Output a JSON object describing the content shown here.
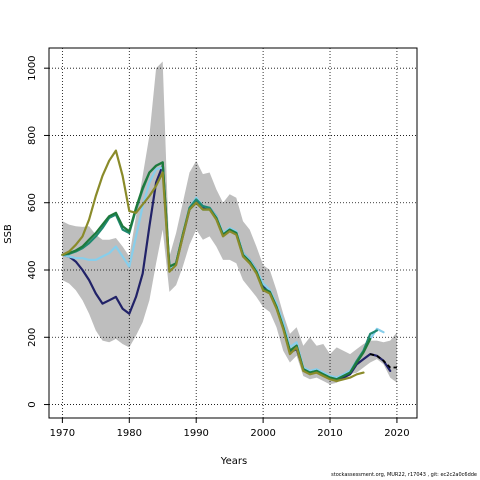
{
  "chart_data": {
    "type": "line",
    "xlabel": "Years",
    "ylabel": "SSB",
    "xlim": [
      1968,
      2023
    ],
    "ylim": [
      -40,
      1060
    ],
    "x_ticks": [
      1970,
      1980,
      1990,
      2000,
      2010,
      2020
    ],
    "y_ticks": [
      0,
      200,
      400,
      600,
      800,
      1000
    ],
    "grid": true,
    "grid_style": "dotted",
    "legend": "none",
    "confidence_band": {
      "color": "#bebebe",
      "x": [
        1970,
        1971,
        1972,
        1973,
        1974,
        1975,
        1976,
        1977,
        1978,
        1979,
        1980,
        1981,
        1982,
        1983,
        1984,
        1985,
        1986,
        1987,
        1988,
        1989,
        1990,
        1991,
        1992,
        1993,
        1994,
        1995,
        1996,
        1997,
        1998,
        1999,
        2000,
        2001,
        2002,
        2003,
        2004,
        2005,
        2006,
        2007,
        2008,
        2009,
        2010,
        2011,
        2012,
        2013,
        2014,
        2015,
        2016,
        2017,
        2018,
        2019,
        2020
      ],
      "upper": [
        545,
        535,
        530,
        528,
        530,
        505,
        490,
        490,
        495,
        470,
        440,
        560,
        680,
        800,
        1000,
        1020,
        440,
        510,
        600,
        690,
        725,
        685,
        690,
        640,
        600,
        625,
        615,
        545,
        520,
        470,
        415,
        400,
        340,
        270,
        210,
        230,
        175,
        200,
        175,
        180,
        150,
        170,
        160,
        150,
        165,
        180,
        190,
        190,
        185,
        190,
        215
      ],
      "lower": [
        370,
        360,
        340,
        310,
        270,
        220,
        190,
        185,
        195,
        180,
        170,
        205,
        245,
        310,
        420,
        520,
        335,
        355,
        410,
        475,
        520,
        490,
        500,
        470,
        430,
        430,
        420,
        370,
        345,
        320,
        290,
        275,
        230,
        160,
        125,
        145,
        85,
        75,
        80,
        70,
        60,
        65,
        80,
        90,
        95,
        110,
        125,
        135,
        120,
        80,
        65
      ]
    },
    "series": [
      {
        "color": "#212268",
        "style": "solid",
        "x": [
          1970,
          1971,
          1972,
          1973,
          1974,
          1975,
          1976,
          1977,
          1978,
          1979,
          1980,
          1981,
          1982,
          1983,
          1984,
          1985,
          1986,
          1987,
          1988,
          1989,
          1990,
          1991,
          1992,
          1993,
          1994,
          1995,
          1996,
          1997,
          1998,
          1999,
          2000,
          2001,
          2002,
          2003,
          2004,
          2005,
          2006,
          2007,
          2008,
          2009,
          2010,
          2011,
          2012,
          2013,
          2014,
          2015,
          2016,
          2017,
          2018,
          2019
        ],
        "values": [
          445,
          440,
          425,
          400,
          370,
          330,
          300,
          310,
          320,
          285,
          270,
          320,
          390,
          530,
          660,
          710,
          400,
          420,
          500,
          580,
          605,
          585,
          585,
          560,
          505,
          520,
          510,
          450,
          430,
          400,
          350,
          335,
          290,
          230,
          155,
          165,
          105,
          95,
          100,
          90,
          80,
          75,
          80,
          90,
          120,
          135,
          150,
          145,
          130,
          100
        ]
      },
      {
        "color": "#87ceeb",
        "style": "solid",
        "x": [
          1970,
          1971,
          1972,
          1973,
          1974,
          1975,
          1976,
          1977,
          1978,
          1979,
          1980,
          1981,
          1982,
          1983,
          1984,
          1985,
          1986,
          1987,
          1988,
          1989,
          1990,
          1991,
          1992,
          1993,
          1994,
          1995,
          1996,
          1997,
          1998,
          1999,
          2000,
          2001,
          2002,
          2003,
          2004,
          2005,
          2006,
          2007,
          2008,
          2009,
          2010,
          2011,
          2012,
          2013,
          2014,
          2015,
          2016,
          2017,
          2018
        ],
        "values": [
          445,
          440,
          435,
          435,
          430,
          430,
          440,
          450,
          470,
          440,
          410,
          500,
          590,
          660,
          700,
          705,
          405,
          420,
          505,
          585,
          615,
          590,
          585,
          560,
          510,
          525,
          515,
          450,
          430,
          400,
          360,
          340,
          300,
          245,
          170,
          185,
          110,
          100,
          105,
          95,
          85,
          80,
          90,
          100,
          130,
          160,
          195,
          225,
          215
        ]
      },
      {
        "color": "#1f8870",
        "style": "solid",
        "x": [
          1970,
          1971,
          1972,
          1973,
          1974,
          1975,
          1976,
          1977,
          1978,
          1979,
          1980,
          1981,
          1982,
          1983,
          1984,
          1985,
          1986,
          1987,
          1988,
          1989,
          1990,
          1991,
          1992,
          1993,
          1994,
          1995,
          1996,
          1997,
          1998,
          1999,
          2000,
          2001,
          2002,
          2003,
          2004,
          2005,
          2006,
          2007,
          2008,
          2009,
          2010,
          2011,
          2012,
          2013,
          2014,
          2015,
          2016,
          2017
        ],
        "values": [
          445,
          448,
          455,
          465,
          480,
          500,
          525,
          555,
          565,
          520,
          510,
          580,
          640,
          690,
          710,
          720,
          410,
          420,
          505,
          585,
          610,
          590,
          585,
          555,
          505,
          520,
          510,
          445,
          425,
          395,
          345,
          335,
          290,
          230,
          160,
          175,
          105,
          95,
          100,
          90,
          80,
          75,
          85,
          95,
          130,
          160,
          210,
          220
        ]
      },
      {
        "color": "#1e7a3c",
        "style": "solid",
        "x": [
          1970,
          1971,
          1972,
          1973,
          1974,
          1975,
          1976,
          1977,
          1978,
          1979,
          1980,
          1981,
          1982,
          1983,
          1984,
          1985,
          1986,
          1987,
          1988,
          1989,
          1990,
          1991,
          1992,
          1993,
          1994,
          1995,
          1996,
          1997,
          1998,
          1999,
          2000,
          2001,
          2002,
          2003,
          2004,
          2005,
          2006,
          2007,
          2008,
          2009,
          2010,
          2011,
          2012,
          2013,
          2014,
          2015,
          2016
        ],
        "values": [
          445,
          450,
          458,
          470,
          490,
          510,
          535,
          560,
          570,
          530,
          515,
          585,
          645,
          690,
          710,
          720,
          410,
          420,
          505,
          580,
          600,
          580,
          580,
          555,
          505,
          520,
          510,
          445,
          425,
          395,
          345,
          335,
          290,
          230,
          160,
          175,
          105,
          95,
          100,
          90,
          80,
          75,
          85,
          95,
          125,
          155,
          195
        ]
      },
      {
        "color": "#8a8b2a",
        "style": "solid",
        "x": [
          1970,
          1971,
          1972,
          1973,
          1974,
          1975,
          1976,
          1977,
          1978,
          1979,
          1980,
          1981,
          1982,
          1983,
          1984,
          1985,
          1986,
          1987,
          1988,
          1989,
          1990,
          1991,
          1992,
          1993,
          1994,
          1995,
          1996,
          1997,
          1998,
          1999,
          2000,
          2001,
          2002,
          2003,
          2004,
          2005,
          2006,
          2007,
          2008,
          2009,
          2010,
          2011,
          2012,
          2013,
          2014,
          2015
        ],
        "values": [
          445,
          455,
          475,
          500,
          550,
          620,
          680,
          725,
          755,
          680,
          575,
          570,
          595,
          620,
          650,
          690,
          395,
          415,
          500,
          580,
          600,
          580,
          580,
          550,
          500,
          515,
          505,
          440,
          420,
          390,
          340,
          330,
          285,
          225,
          150,
          170,
          100,
          90,
          95,
          85,
          75,
          70,
          75,
          80,
          90,
          95
        ]
      },
      {
        "color": "#000000",
        "style": "dashed",
        "x": [
          2016,
          2017,
          2018,
          2019,
          2020
        ],
        "values": [
          150,
          145,
          130,
          110,
          110
        ]
      }
    ]
  },
  "footer": {
    "text": "stockassessment.org,  MUR22,  r17043 ,  git:  ec2c2a0c6dde"
  }
}
